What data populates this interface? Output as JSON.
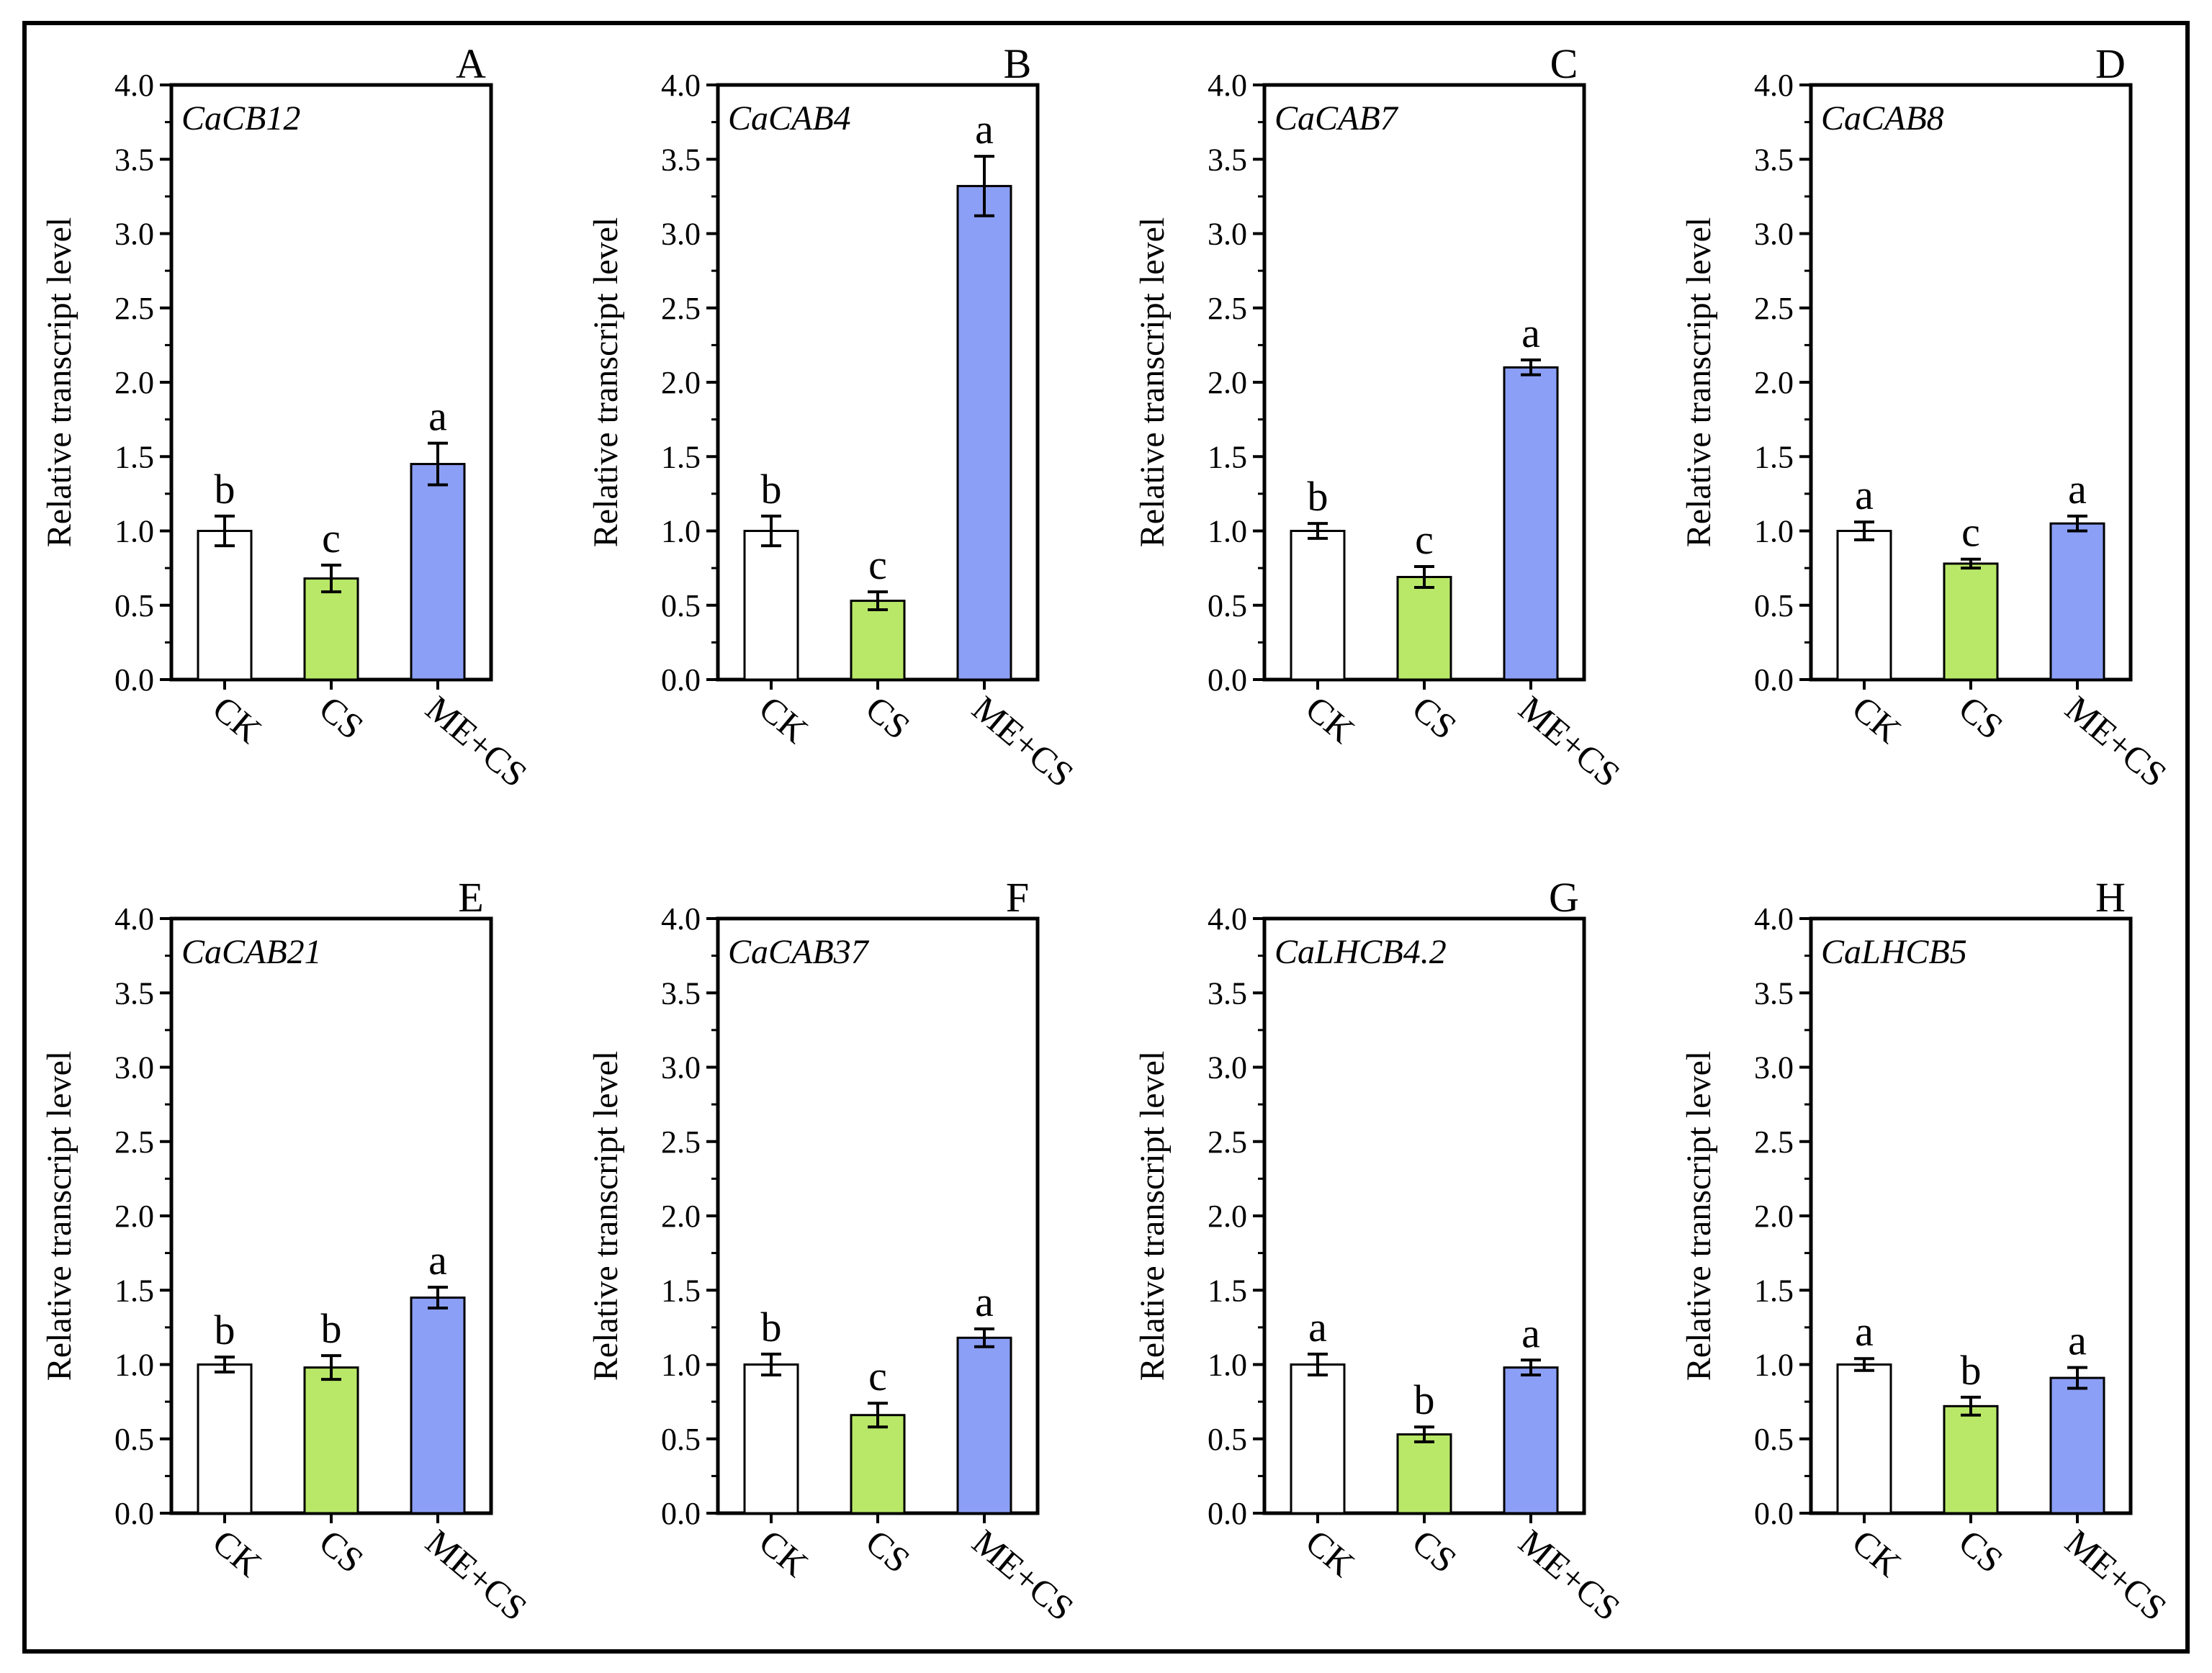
{
  "colors": {
    "CK": "#ffffff",
    "CS": "#b9e868",
    "ME+CS": "#8c9ff6",
    "stroke": "#000000"
  },
  "chart_data": [
    {
      "type": "bar",
      "panel": "A",
      "title": "CaCB12",
      "ylabel": "Relative transcript level",
      "ylim": [
        0,
        4.0
      ],
      "yticks": [
        "0.0",
        "0.5",
        "1.0",
        "1.5",
        "2.0",
        "2.5",
        "3.0",
        "3.5",
        "4.0"
      ],
      "categories": [
        "CK",
        "CS",
        "ME+CS"
      ],
      "values": [
        1.0,
        0.68,
        1.45
      ],
      "errors": [
        0.1,
        0.09,
        0.14
      ],
      "significance": [
        "b",
        "c",
        "a"
      ]
    },
    {
      "type": "bar",
      "panel": "B",
      "title": "CaCAB4",
      "ylabel": "Relative transcript level",
      "ylim": [
        0,
        4.0
      ],
      "yticks": [
        "0.0",
        "0.5",
        "1.0",
        "1.5",
        "2.0",
        "2.5",
        "3.0",
        "3.5",
        "4.0"
      ],
      "categories": [
        "CK",
        "CS",
        "ME+CS"
      ],
      "values": [
        1.0,
        0.53,
        3.32
      ],
      "errors": [
        0.1,
        0.06,
        0.2
      ],
      "significance": [
        "b",
        "c",
        "a"
      ]
    },
    {
      "type": "bar",
      "panel": "C",
      "title": "CaCAB7",
      "ylabel": "Relative transcript level",
      "ylim": [
        0,
        4.0
      ],
      "yticks": [
        "0.0",
        "0.5",
        "1.0",
        "1.5",
        "2.0",
        "2.5",
        "3.0",
        "3.5",
        "4.0"
      ],
      "categories": [
        "CK",
        "CS",
        "ME+CS"
      ],
      "values": [
        1.0,
        0.69,
        2.1
      ],
      "errors": [
        0.05,
        0.07,
        0.05
      ],
      "significance": [
        "b",
        "c",
        "a"
      ]
    },
    {
      "type": "bar",
      "panel": "D",
      "title": "CaCAB8",
      "ylabel": "Relative transcript level",
      "ylim": [
        0,
        4.0
      ],
      "yticks": [
        "0.0",
        "0.5",
        "1.0",
        "1.5",
        "2.0",
        "2.5",
        "3.0",
        "3.5",
        "4.0"
      ],
      "categories": [
        "CK",
        "CS",
        "ME+CS"
      ],
      "values": [
        1.0,
        0.78,
        1.05
      ],
      "errors": [
        0.06,
        0.03,
        0.05
      ],
      "significance": [
        "a",
        "c",
        "a"
      ]
    },
    {
      "type": "bar",
      "panel": "E",
      "title": "CaCAB21",
      "ylabel": "Relative transcript level",
      "ylim": [
        0,
        4.0
      ],
      "yticks": [
        "0.0",
        "0.5",
        "1.0",
        "1.5",
        "2.0",
        "2.5",
        "3.0",
        "3.5",
        "4.0"
      ],
      "categories": [
        "CK",
        "CS",
        "ME+CS"
      ],
      "values": [
        1.0,
        0.98,
        1.45
      ],
      "errors": [
        0.05,
        0.08,
        0.07
      ],
      "significance": [
        "b",
        "b",
        "a"
      ]
    },
    {
      "type": "bar",
      "panel": "F",
      "title": "CaCAB37",
      "ylabel": "Relative transcript level",
      "ylim": [
        0,
        4.0
      ],
      "yticks": [
        "0.0",
        "0.5",
        "1.0",
        "1.5",
        "2.0",
        "2.5",
        "3.0",
        "3.5",
        "4.0"
      ],
      "categories": [
        "CK",
        "CS",
        "ME+CS"
      ],
      "values": [
        1.0,
        0.66,
        1.18
      ],
      "errors": [
        0.07,
        0.08,
        0.06
      ],
      "significance": [
        "b",
        "c",
        "a"
      ]
    },
    {
      "type": "bar",
      "panel": "G",
      "title": "CaLHCB4.2",
      "ylabel": "Relative transcript level",
      "ylim": [
        0,
        4.0
      ],
      "yticks": [
        "0.0",
        "0.5",
        "1.0",
        "1.5",
        "2.0",
        "2.5",
        "3.0",
        "3.5",
        "4.0"
      ],
      "categories": [
        "CK",
        "CS",
        "ME+CS"
      ],
      "values": [
        1.0,
        0.53,
        0.98
      ],
      "errors": [
        0.07,
        0.05,
        0.05
      ],
      "significance": [
        "a",
        "b",
        "a"
      ]
    },
    {
      "type": "bar",
      "panel": "H",
      "title": "CaLHCB5",
      "ylabel": "Relative transcript level",
      "ylim": [
        0,
        4.0
      ],
      "yticks": [
        "0.0",
        "0.5",
        "1.0",
        "1.5",
        "2.0",
        "2.5",
        "3.0",
        "3.5",
        "4.0"
      ],
      "categories": [
        "CK",
        "CS",
        "ME+CS"
      ],
      "values": [
        1.0,
        0.72,
        0.91
      ],
      "errors": [
        0.04,
        0.06,
        0.07
      ],
      "significance": [
        "a",
        "b",
        "a"
      ]
    }
  ]
}
